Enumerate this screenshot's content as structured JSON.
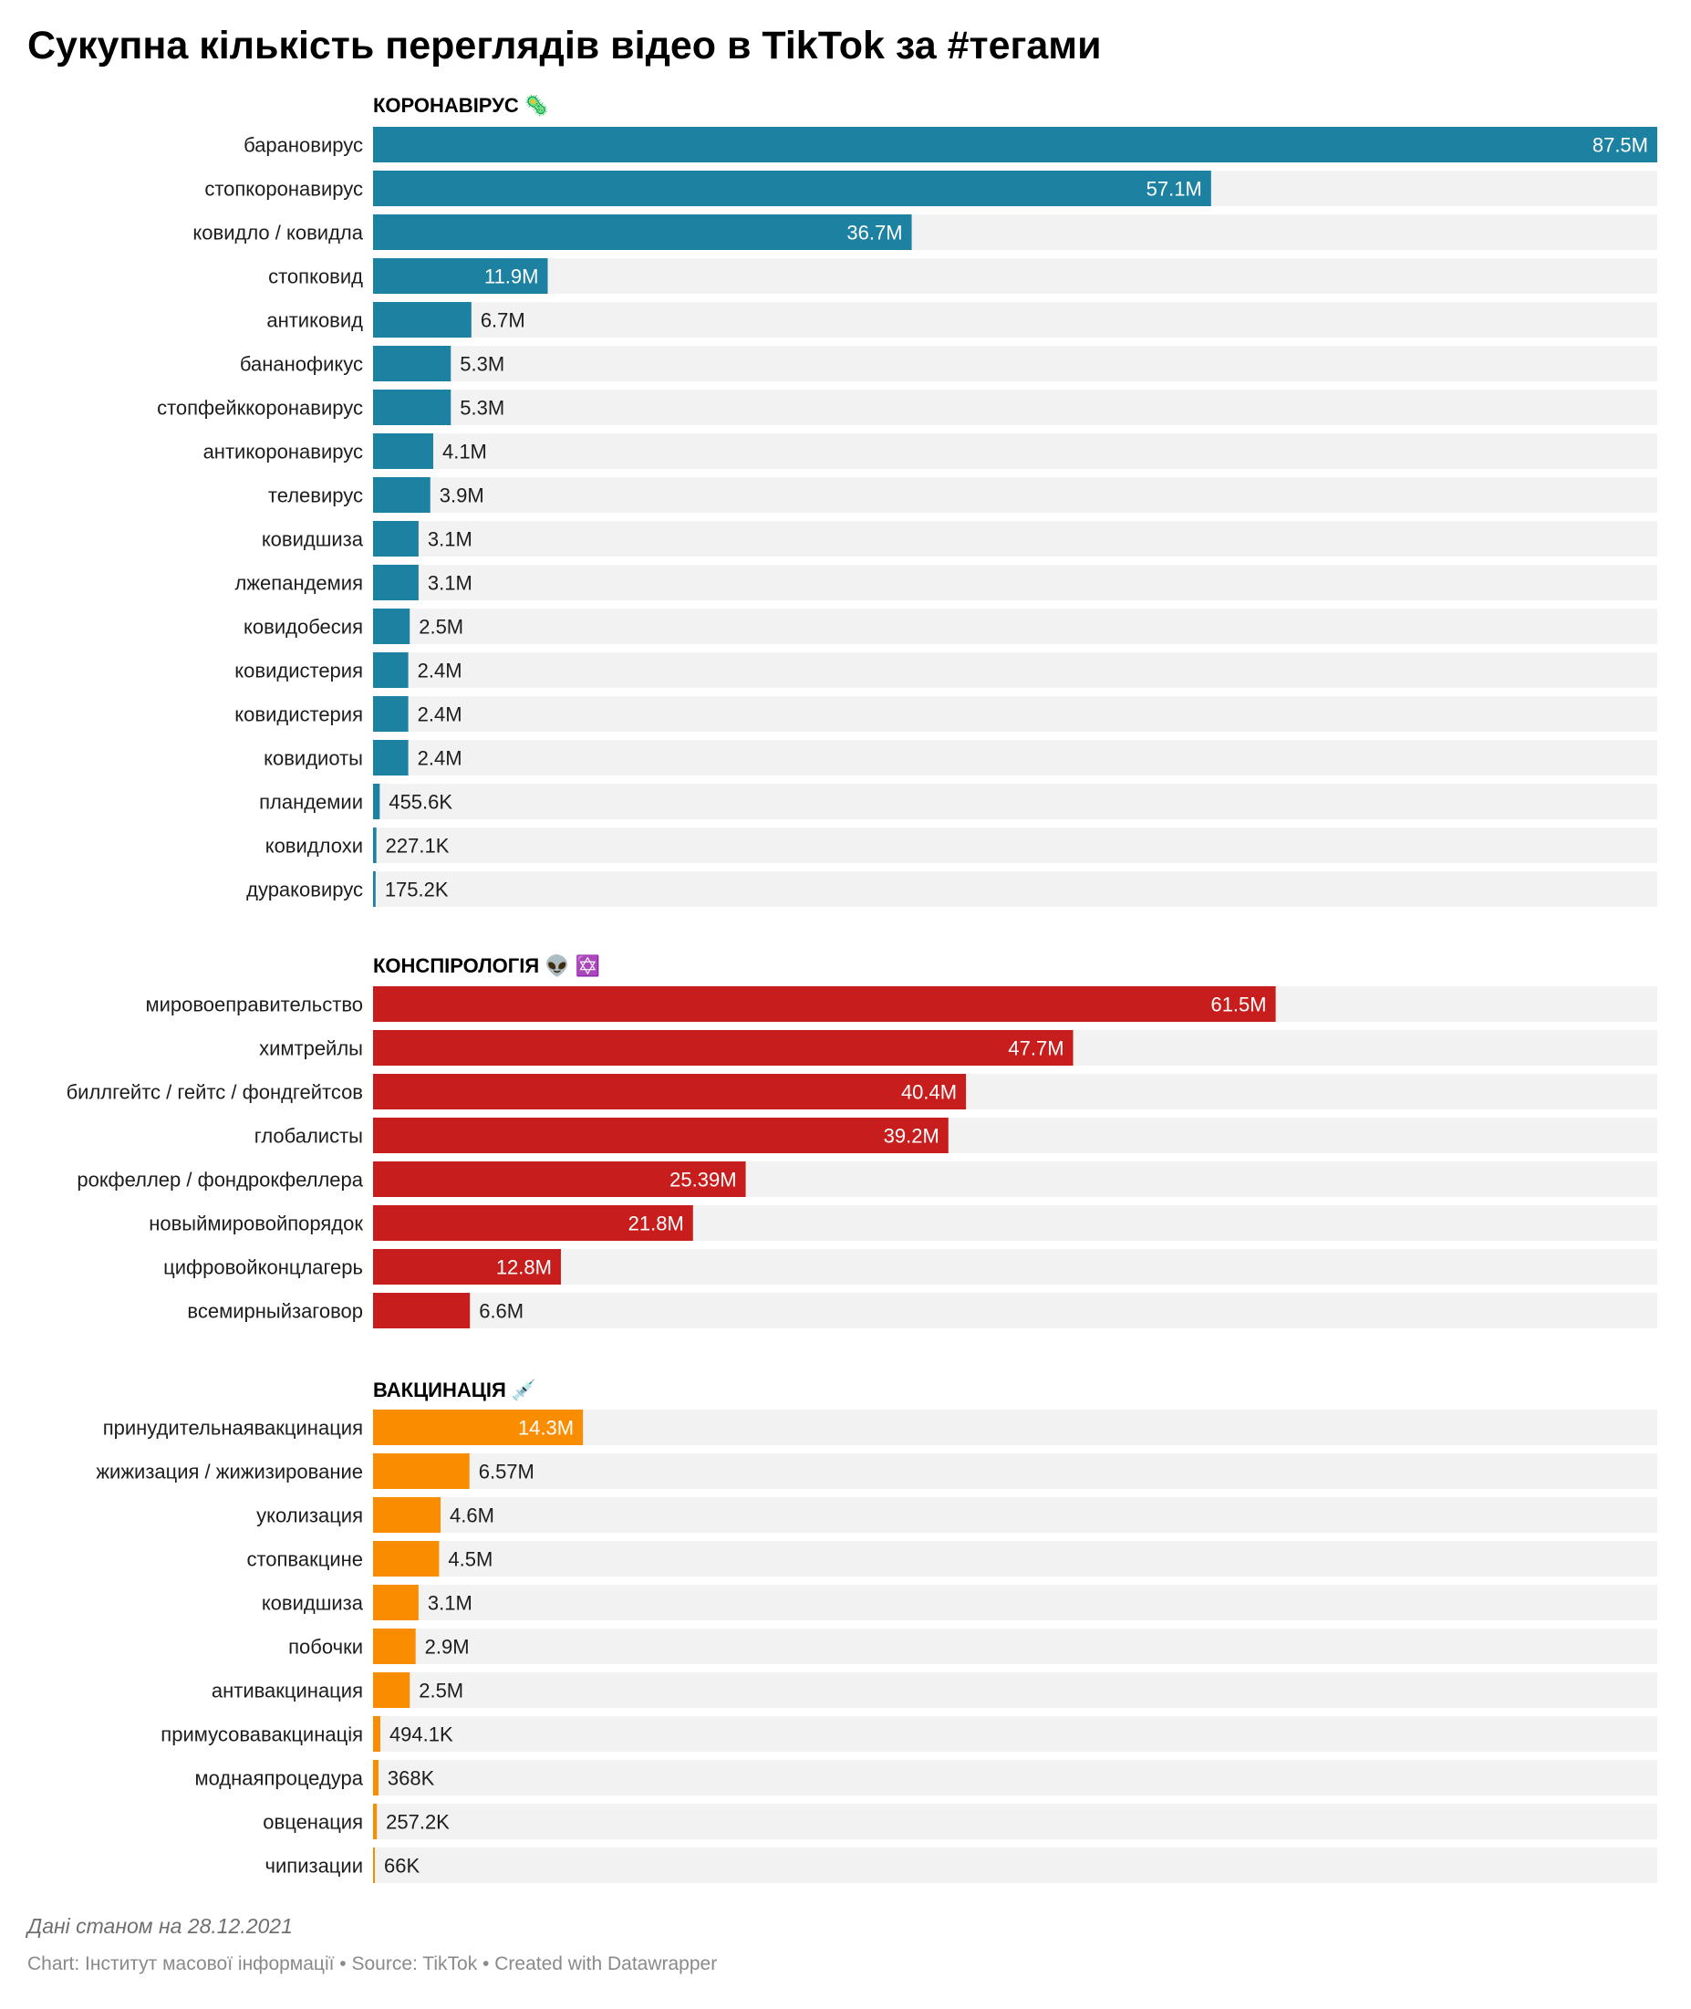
{
  "title": "Сукупна кількість переглядів відео в TikTok за #тегами",
  "footer": {
    "note": "Дані станом на 28.12.2021",
    "chart_by": "Chart: Інститут масової інформації",
    "source": "Source: TikTok",
    "created_with": "Created with Datawrapper",
    "separator": " • "
  },
  "chart_data": {
    "type": "bar",
    "orientation": "horizontal",
    "xlim": [
      0,
      87.5
    ],
    "unit": "millions of views",
    "groups": [
      {
        "title": "КОРОНАВІРУС 🦠",
        "color": "#1d81a2",
        "categories": [
          "барановирус",
          "стопкоронавирус",
          "ковидло / ковидла",
          "стопковид",
          "антиковид",
          "бананофикус",
          "стопфейккоронавирус",
          "антикоронавирус",
          "телевирус",
          "ковидшиза",
          "лжепандемия",
          "ковидобесия",
          "ковидистерия",
          "ковидистерия",
          "ковидиоты",
          "пландемии",
          "ковидлохи",
          "дураковирус"
        ],
        "values": [
          87.5,
          57.1,
          36.7,
          11.9,
          6.7,
          5.3,
          5.3,
          4.1,
          3.9,
          3.1,
          3.1,
          2.5,
          2.4,
          2.4,
          2.4,
          0.4556,
          0.2271,
          0.1752
        ],
        "labels": [
          "87.5M",
          "57.1M",
          "36.7M",
          "11.9M",
          "6.7M",
          "5.3M",
          "5.3M",
          "4.1M",
          "3.9M",
          "3.1M",
          "3.1M",
          "2.5M",
          "2.4M",
          "2.4M",
          "2.4M",
          "455.6K",
          "227.1K",
          "175.2K"
        ]
      },
      {
        "title": "КОНСПІРОЛОГІЯ 👽 ✡️",
        "color": "#c71e1d",
        "categories": [
          "мировоеправительство",
          "химтрейлы",
          "биллгейтс / гейтс / фондгейтсов",
          "глобалисты",
          "рокфеллер / фондрокфеллера",
          "новыймировойпорядок",
          "цифровойконцлагерь",
          "всемирныйзаговор"
        ],
        "values": [
          61.5,
          47.7,
          40.4,
          39.2,
          25.39,
          21.8,
          12.8,
          6.6
        ],
        "labels": [
          "61.5M",
          "47.7M",
          "40.4M",
          "39.2M",
          "25.39M",
          "21.8M",
          "12.8M",
          "6.6M"
        ]
      },
      {
        "title": "ВАКЦИНАЦІЯ 💉",
        "color": "#fa8c00",
        "categories": [
          "принудительнаявакцинация",
          "жижизация / жижизирование",
          "уколизация",
          "стопвакцине",
          "ковидшиза",
          "побочки",
          "антивакцинация",
          "примусовавакцинація",
          "моднаяпроцедура",
          "овценация",
          "чипизации"
        ],
        "values": [
          14.3,
          6.57,
          4.6,
          4.5,
          3.1,
          2.9,
          2.5,
          0.4941,
          0.368,
          0.2572,
          0.066
        ],
        "labels": [
          "14.3M",
          "6.57M",
          "4.6M",
          "4.5M",
          "3.1M",
          "2.9M",
          "2.5M",
          "494.1K",
          "368K",
          "257.2K",
          "66K"
        ]
      }
    ]
  }
}
